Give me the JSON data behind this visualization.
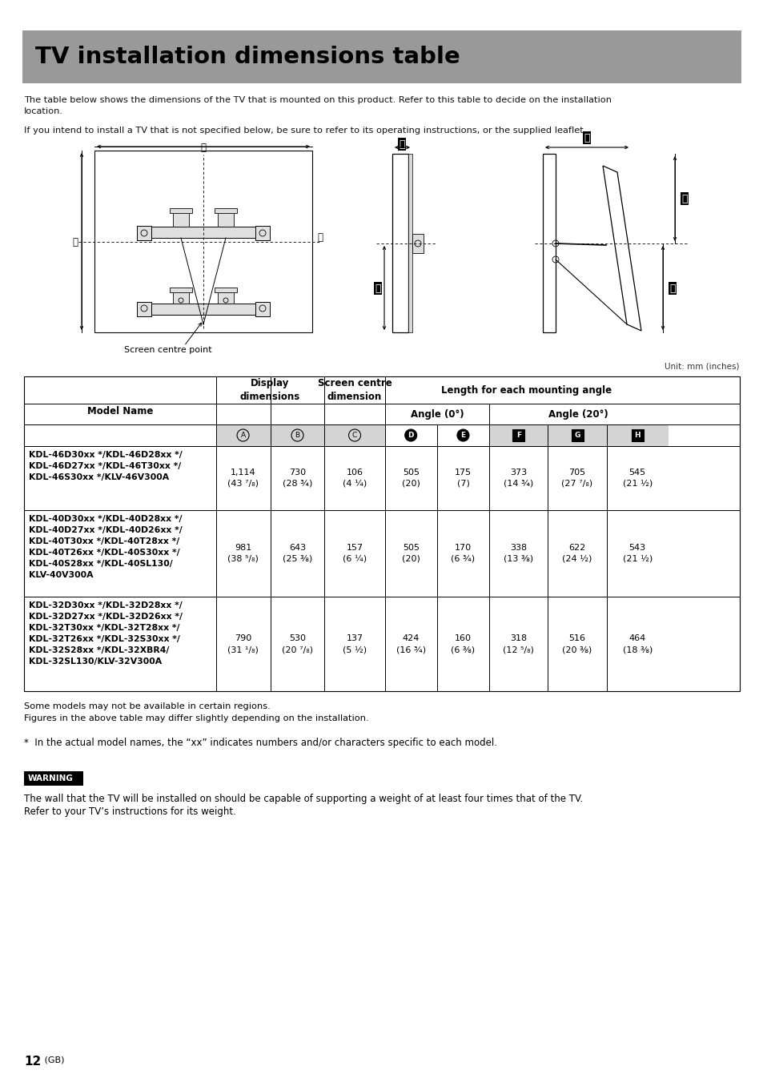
{
  "title": "TV installation dimensions table",
  "title_bg": "#999999",
  "title_color": "#000000",
  "page_bg": "#ffffff",
  "intro_text1": "The table below shows the dimensions of the TV that is mounted on this product. Refer to this table to decide on the installation\nlocation.",
  "intro_text2": "If you intend to install a TV that is not specified below, be sure to refer to its operating instructions, or the supplied leaflet.",
  "unit_text": "Unit: mm (inches)",
  "rows": [
    {
      "model": "KDL-46D30xx */KDL-46D28xx */\nKDL-46D27xx */KDL-46T30xx */\nKDL-46S30xx */KLV-46V300A",
      "A": "1,114",
      "A2": "(43 ⁷/₈)",
      "B": "730",
      "B2": "(28 ¾)",
      "C": "106",
      "C2": "(4 ¼)",
      "D": "505",
      "D2": "(20)",
      "E": "175",
      "E2": "(7)",
      "F": "373",
      "F2": "(14 ¾)",
      "G": "705",
      "G2": "(27 ⁷/₈)",
      "H": "545",
      "H2": "(21 ½)"
    },
    {
      "model": "KDL-40D30xx */KDL-40D28xx */\nKDL-40D27xx */KDL-40D26xx */\nKDL-40T30xx */KDL-40T28xx */\nKDL-40T26xx */KDL-40S30xx */\nKDL-40S28xx */KDL-40SL130/\nKLV-40V300A",
      "A": "981",
      "A2": "(38 ⁵/₈)",
      "B": "643",
      "B2": "(25 ⅜)",
      "C": "157",
      "C2": "(6 ¼)",
      "D": "505",
      "D2": "(20)",
      "E": "170",
      "E2": "(6 ¾)",
      "F": "338",
      "F2": "(13 ⅜)",
      "G": "622",
      "G2": "(24 ½)",
      "H": "543",
      "H2": "(21 ½)"
    },
    {
      "model": "KDL-32D30xx */KDL-32D28xx */\nKDL-32D27xx */KDL-32D26xx */\nKDL-32T30xx */KDL-32T28xx */\nKDL-32T26xx */KDL-32S30xx */\nKDL-32S28xx */KDL-32XBR4/\nKDL-32SL130/KLV-32V300A",
      "A": "790",
      "A2": "(31 ¹/₈)",
      "B": "530",
      "B2": "(20 ⁷/₈)",
      "C": "137",
      "C2": "(5 ½)",
      "D": "424",
      "D2": "(16 ¾)",
      "E": "160",
      "E2": "(6 ⅜)",
      "F": "318",
      "F2": "(12 ⁵/₈)",
      "G": "516",
      "G2": "(20 ⅜)",
      "H": "464",
      "H2": "(18 ⅜)"
    }
  ],
  "footnotes": [
    "Some models may not be available in certain regions.",
    "Figures in the above table may differ slightly depending on the installation."
  ],
  "asterisk_note": "*  In the actual model names, the “xx” indicates numbers and/or characters specific to each model.",
  "warning_label": "WARNING",
  "warning_text1": "The wall that the TV will be installed on should be capable of supporting a weight of at least four times that of the TV.",
  "warning_text2": "Refer to your TV’s instructions for its weight.",
  "page_number": "12",
  "page_suffix": " (GB)"
}
